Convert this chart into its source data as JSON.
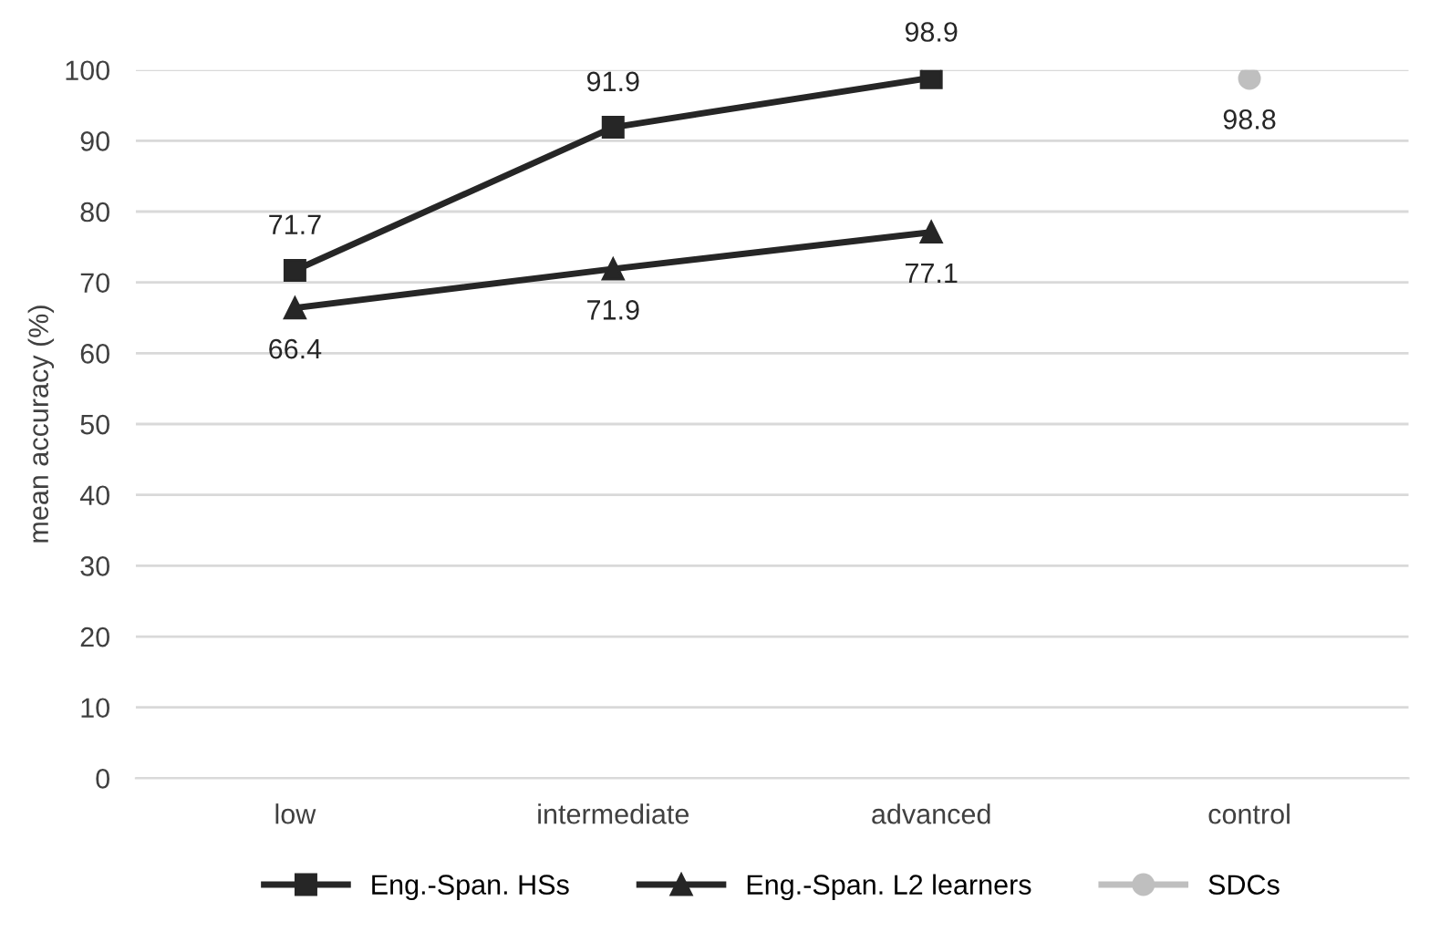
{
  "chart_data": {
    "type": "line",
    "ylabel": "mean accuracy (%)",
    "categories": [
      "low",
      "intermediate",
      "advanced",
      "control"
    ],
    "series": [
      {
        "name": "Eng.-Span. HSs",
        "color": "#262626",
        "marker": "square",
        "values": [
          71.7,
          91.9,
          98.9,
          null
        ]
      },
      {
        "name": "Eng.-Span. L2 learners",
        "color": "#262626",
        "marker": "triangle",
        "values": [
          66.4,
          71.9,
          77.1,
          null
        ]
      },
      {
        "name": "SDCs",
        "color": "#bfbfbf",
        "marker": "circle",
        "values": [
          null,
          null,
          null,
          98.8
        ]
      }
    ],
    "ylim": [
      0,
      100
    ],
    "yticks": [
      0,
      10,
      20,
      30,
      40,
      50,
      60,
      70,
      80,
      90,
      100
    ],
    "grid": "y",
    "legend": "bottom",
    "data_labels": true,
    "line_style": "solid"
  }
}
